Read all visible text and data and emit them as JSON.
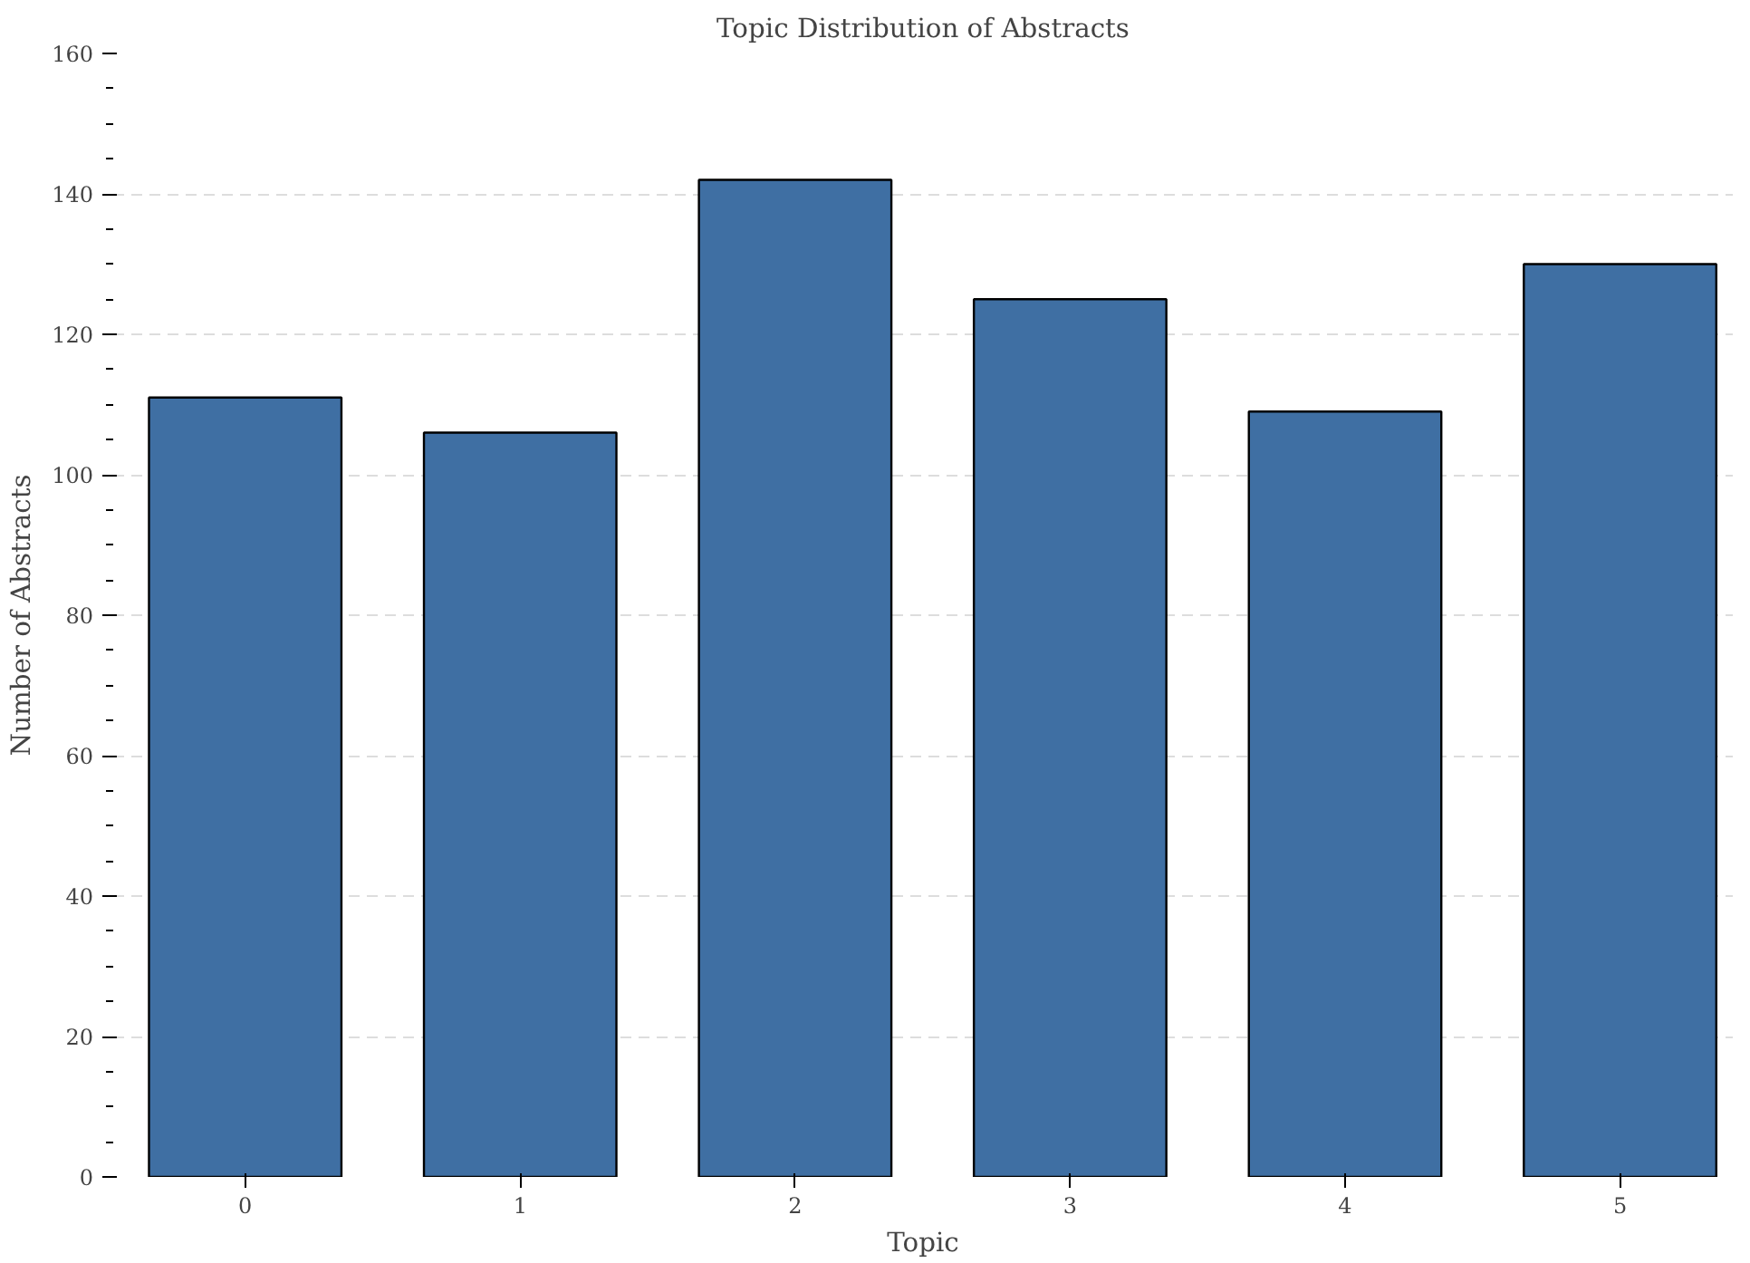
{
  "chart_data": {
    "type": "bar",
    "title": "Topic Distribution of Abstracts",
    "xlabel": "Topic",
    "ylabel": "Number of Abstracts",
    "categories": [
      "0",
      "1",
      "2",
      "3",
      "4",
      "5"
    ],
    "values": [
      111,
      106,
      142,
      125,
      109,
      130
    ],
    "color": "#3f6fa3",
    "ylim": [
      0,
      160
    ],
    "yticks": [
      0,
      20,
      40,
      60,
      80,
      100,
      120,
      140,
      160
    ],
    "grid": "y"
  }
}
